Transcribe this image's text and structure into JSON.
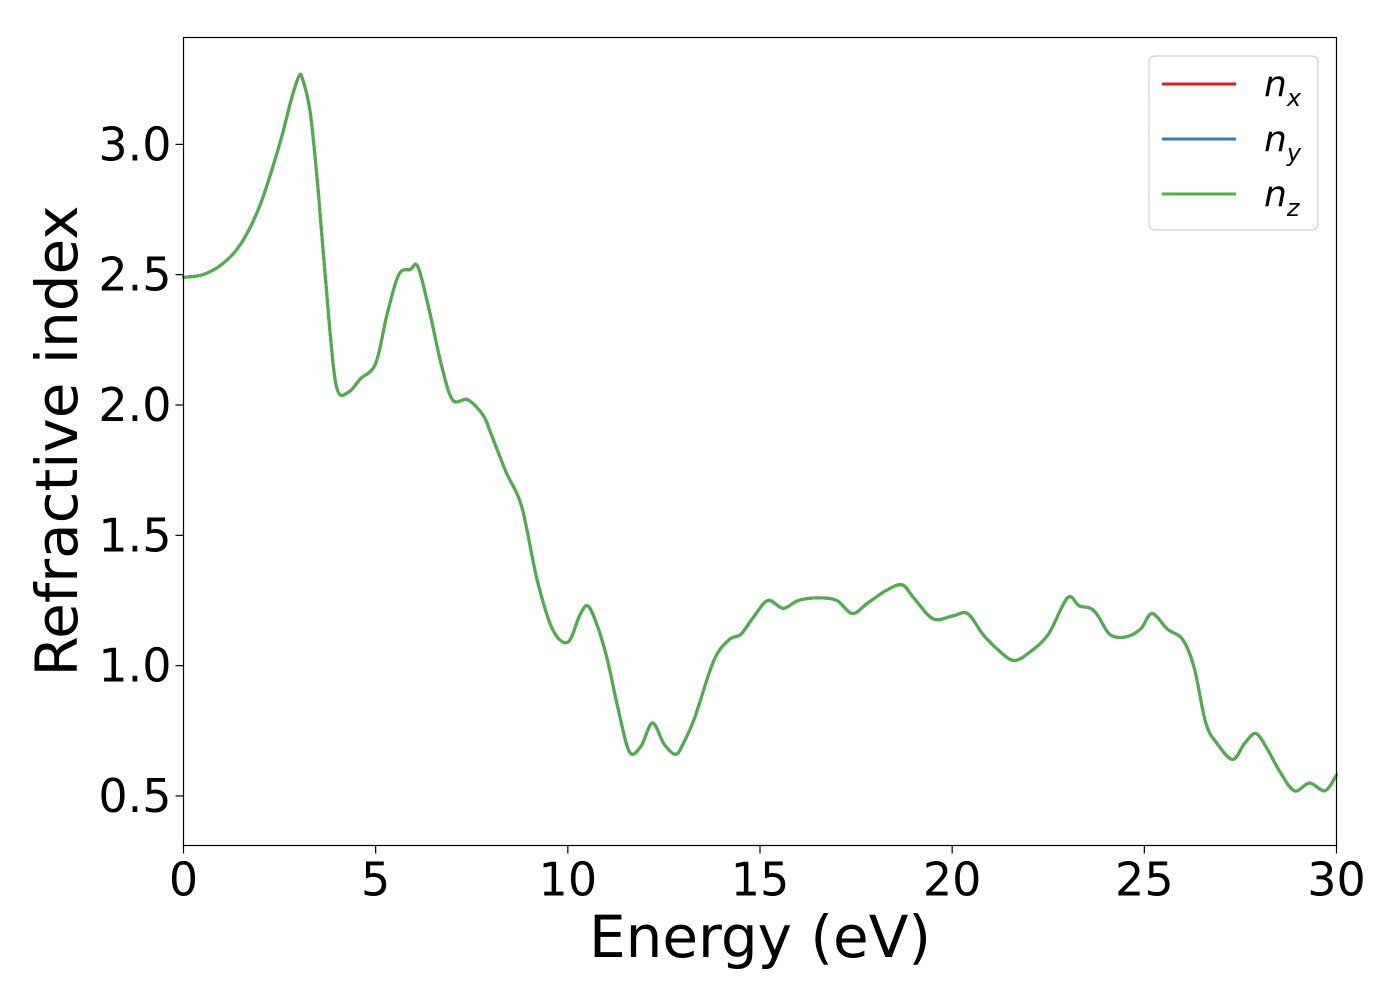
{
  "chart_data": {
    "type": "line",
    "xlabel": "Energy (eV)",
    "ylabel": "Refractive index",
    "xlim": [
      0,
      30
    ],
    "ylim": [
      0.31,
      3.41
    ],
    "xticks": [
      0,
      5,
      10,
      15,
      20,
      25,
      30
    ],
    "xtick_labels": [
      "0",
      "5",
      "10",
      "15",
      "20",
      "25",
      "30"
    ],
    "yticks": [
      0.5,
      1.0,
      1.5,
      2.0,
      2.5,
      3.0
    ],
    "ytick_labels": [
      "0.5",
      "1.0",
      "1.5",
      "2.0",
      "2.5",
      "3.0"
    ],
    "grid": false,
    "legend_position": "top-right",
    "x": [
      0.0,
      0.5,
      1.0,
      1.5,
      2.0,
      2.5,
      2.8,
      3.0,
      3.1,
      3.3,
      3.5,
      3.8,
      4.0,
      4.3,
      4.6,
      5.0,
      5.3,
      5.6,
      5.9,
      6.1,
      6.4,
      6.7,
      7.0,
      7.4,
      7.8,
      8.0,
      8.4,
      8.8,
      9.2,
      9.6,
      10.0,
      10.3,
      10.5,
      10.7,
      11.0,
      11.3,
      11.6,
      11.9,
      12.2,
      12.5,
      12.8,
      13.0,
      13.3,
      13.8,
      14.2,
      14.5,
      14.8,
      15.2,
      15.6,
      16.0,
      16.5,
      17.0,
      17.4,
      17.8,
      18.3,
      18.7,
      19.0,
      19.5,
      20.0,
      20.4,
      20.8,
      21.2,
      21.6,
      22.0,
      22.5,
      23.0,
      23.3,
      23.6,
      23.8,
      24.1,
      24.5,
      24.9,
      25.2,
      25.6,
      26.0,
      26.3,
      26.6,
      26.9,
      27.3,
      27.6,
      27.9,
      28.2,
      28.5,
      28.9,
      29.3,
      29.7,
      30.0
    ],
    "series": [
      {
        "name": "x",
        "color": "#e41a1c",
        "values": [
          2.49,
          2.5,
          2.54,
          2.62,
          2.77,
          3.0,
          3.17,
          3.26,
          3.25,
          3.12,
          2.83,
          2.3,
          2.06,
          2.05,
          2.1,
          2.16,
          2.35,
          2.5,
          2.52,
          2.53,
          2.36,
          2.16,
          2.02,
          2.02,
          1.96,
          1.89,
          1.74,
          1.61,
          1.33,
          1.14,
          1.09,
          1.19,
          1.23,
          1.18,
          1.04,
          0.84,
          0.67,
          0.69,
          0.78,
          0.7,
          0.66,
          0.7,
          0.8,
          1.02,
          1.1,
          1.12,
          1.18,
          1.25,
          1.22,
          1.25,
          1.26,
          1.25,
          1.2,
          1.24,
          1.29,
          1.31,
          1.26,
          1.18,
          1.19,
          1.2,
          1.12,
          1.06,
          1.02,
          1.05,
          1.12,
          1.26,
          1.23,
          1.22,
          1.19,
          1.12,
          1.11,
          1.14,
          1.2,
          1.14,
          1.1,
          0.99,
          0.78,
          0.7,
          0.64,
          0.7,
          0.74,
          0.68,
          0.6,
          0.52,
          0.55,
          0.52,
          0.58
        ]
      },
      {
        "name": "y",
        "color": "#377eb8",
        "values": [
          2.49,
          2.5,
          2.54,
          2.62,
          2.77,
          3.0,
          3.17,
          3.26,
          3.25,
          3.12,
          2.83,
          2.3,
          2.06,
          2.05,
          2.1,
          2.16,
          2.35,
          2.5,
          2.52,
          2.53,
          2.36,
          2.16,
          2.02,
          2.02,
          1.96,
          1.89,
          1.74,
          1.61,
          1.33,
          1.14,
          1.09,
          1.19,
          1.23,
          1.18,
          1.04,
          0.84,
          0.67,
          0.69,
          0.78,
          0.7,
          0.66,
          0.7,
          0.8,
          1.02,
          1.1,
          1.12,
          1.18,
          1.25,
          1.22,
          1.25,
          1.26,
          1.25,
          1.2,
          1.24,
          1.29,
          1.31,
          1.26,
          1.18,
          1.19,
          1.2,
          1.12,
          1.06,
          1.02,
          1.05,
          1.12,
          1.26,
          1.23,
          1.22,
          1.19,
          1.12,
          1.11,
          1.14,
          1.2,
          1.14,
          1.1,
          0.99,
          0.78,
          0.7,
          0.64,
          0.7,
          0.74,
          0.68,
          0.6,
          0.52,
          0.55,
          0.52,
          0.58
        ]
      },
      {
        "name": "z",
        "color": "#4daf4a",
        "values": [
          2.49,
          2.5,
          2.54,
          2.62,
          2.77,
          3.0,
          3.17,
          3.26,
          3.25,
          3.12,
          2.83,
          2.3,
          2.06,
          2.05,
          2.1,
          2.16,
          2.35,
          2.5,
          2.52,
          2.53,
          2.36,
          2.16,
          2.02,
          2.02,
          1.96,
          1.89,
          1.74,
          1.61,
          1.33,
          1.14,
          1.09,
          1.19,
          1.23,
          1.18,
          1.04,
          0.84,
          0.67,
          0.69,
          0.78,
          0.7,
          0.66,
          0.7,
          0.8,
          1.02,
          1.1,
          1.12,
          1.18,
          1.25,
          1.22,
          1.25,
          1.26,
          1.25,
          1.2,
          1.24,
          1.29,
          1.31,
          1.26,
          1.18,
          1.19,
          1.2,
          1.12,
          1.06,
          1.02,
          1.05,
          1.12,
          1.26,
          1.23,
          1.22,
          1.19,
          1.12,
          1.11,
          1.14,
          1.2,
          1.14,
          1.1,
          0.99,
          0.78,
          0.7,
          0.64,
          0.7,
          0.74,
          0.68,
          0.6,
          0.52,
          0.55,
          0.52,
          0.58
        ]
      }
    ],
    "legend": [
      {
        "symbol": "n",
        "sub": "x",
        "color": "#e41a1c"
      },
      {
        "symbol": "n",
        "sub": "y",
        "color": "#377eb8"
      },
      {
        "symbol": "n",
        "sub": "z",
        "color": "#4daf4a"
      }
    ]
  }
}
